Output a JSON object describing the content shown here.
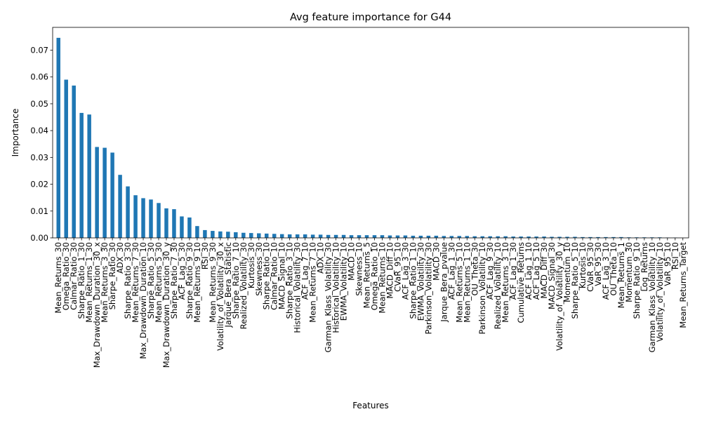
{
  "chart_data": {
    "type": "bar",
    "title": "Avg feature importance for G44",
    "xlabel": "Features",
    "ylabel": "Importance",
    "ylim": [
      0,
      0.0785
    ],
    "yticks": [
      "0.00",
      "0.01",
      "0.02",
      "0.03",
      "0.04",
      "0.05",
      "0.06",
      "0.07"
    ],
    "ytick_values": [
      0,
      0.01,
      0.02,
      0.03,
      0.04,
      0.05,
      0.06,
      0.07
    ],
    "bar_color": "#1f77b4",
    "grid": false,
    "legend": "none",
    "categories": [
      "Mean_Returns_30",
      "Omega_Ratio_30",
      "Calmar_Ratio_30",
      "Sharpe_Ratio_1_30",
      "Mean_Returns_1_30",
      "Max_Drawdown_Duration_30_x",
      "Mean_Returns_3_30",
      "Sharpe_Ratio_30",
      "ADX_30",
      "Sharpe_Ratio_3_30",
      "Mean_Returns_7_30",
      "Max_Drawdown_Duration_10",
      "Sharpe_Ratio_5_30",
      "Mean_Returns_5_30",
      "Max_Drawdown_Duration_30_y",
      "Sharpe_Ratio_7_30",
      "ACF_Lag_5_30",
      "Sharpe_Ratio_9_30",
      "Mean_Returns_9_10",
      "RSI_30",
      "Mean_Returns_9_30",
      "Volatility_of_Volatility_30_x",
      "Jarque_Bera_Statistic",
      "Sharpe_Ratio_7_10",
      "Realized_Volatility_30",
      "Kurtosis_30",
      "Skewness_30",
      "Sharpe_Ratio_10",
      "Calmar_Ratio_10",
      "MACD_Signal_10",
      "Sharpe_Ratio_3_10",
      "Historical_Volatility_30",
      "ACF_Lag_7_10",
      "Mean_Returns_7_10",
      "ADX_10",
      "Garman_Klass_Volatility_30",
      "Historical_Volatility_10",
      "EWMA_Volatility_10",
      "MACD_10",
      "Skewness_10",
      "Mean_Returns_5",
      "Omega_Ratio_10",
      "Mean_Returns_10",
      "MACD_Diff_10",
      "CVaR_95_10",
      "ACF_Lag_3_30",
      "Sharpe_Ratio_1_10",
      "EWMA_Volatility_30",
      "Parkinson_Volatility_30",
      "MACD_30",
      "Jarque_Bera_pvalue",
      "ACF_Lag_1_30",
      "Mean_Returns_5_10",
      "Mean_Returns_1_10",
      "OU_Theta_30",
      "Parkinson_Volatility_10",
      "ACF_Lag_9_30",
      "Realized_Volatility_10",
      "Mean_Returns_3_10",
      "ACF_Lag_1_30",
      "Cumulative_Returns",
      "ACF_Lag_1_10",
      "ACF_Lag_5_10",
      "MACD_Diff_30",
      "MACD_Signal_30",
      "Volatility_of_Volatility_30_y",
      "Momentum_10",
      "Sharpe_Ratio_5_10",
      "Kurtosis_10",
      "CVaR_95_30",
      "VaR_95_30",
      "ACF_Lag_3_10",
      "OU_Theta_10",
      "Mean_Returns_1",
      "Momentum_30",
      "Sharpe_Ratio_9_10",
      "Log_Returns",
      "Garman_Klass_Volatility_10",
      "Volatility_of_Volatility_10",
      "VaR_95_10",
      "RSI_10",
      "Mean_Returns_Target"
    ],
    "values": [
      0.0746,
      0.059,
      0.0568,
      0.0466,
      0.046,
      0.0339,
      0.0336,
      0.0318,
      0.0235,
      0.0192,
      0.0159,
      0.0148,
      0.0143,
      0.013,
      0.011,
      0.0107,
      0.008,
      0.0076,
      0.0044,
      0.0029,
      0.0026,
      0.0024,
      0.0023,
      0.0021,
      0.0019,
      0.0018,
      0.0017,
      0.0016,
      0.0015,
      0.0014,
      0.0013,
      0.0013,
      0.0013,
      0.0012,
      0.0012,
      0.0011,
      0.0011,
      0.0011,
      0.001,
      0.001,
      0.001,
      0.001,
      0.001,
      0.0009,
      0.0009,
      0.0009,
      0.0008,
      0.0008,
      0.0008,
      0.0008,
      0.0007,
      0.0007,
      0.0007,
      0.0007,
      0.0006,
      0.0006,
      0.0006,
      0.0006,
      0.0006,
      0.0005,
      0.0005,
      0.0005,
      0.0005,
      0.0005,
      0.0004,
      0.0004,
      0.0004,
      0.0004,
      0.0003,
      0.0003,
      0.0003,
      0.0003,
      0.0003,
      0.0003,
      0.0002,
      0.0002,
      0.0002,
      0.0002,
      0.0002,
      0.0001,
      0.0001,
      0.0
    ]
  }
}
